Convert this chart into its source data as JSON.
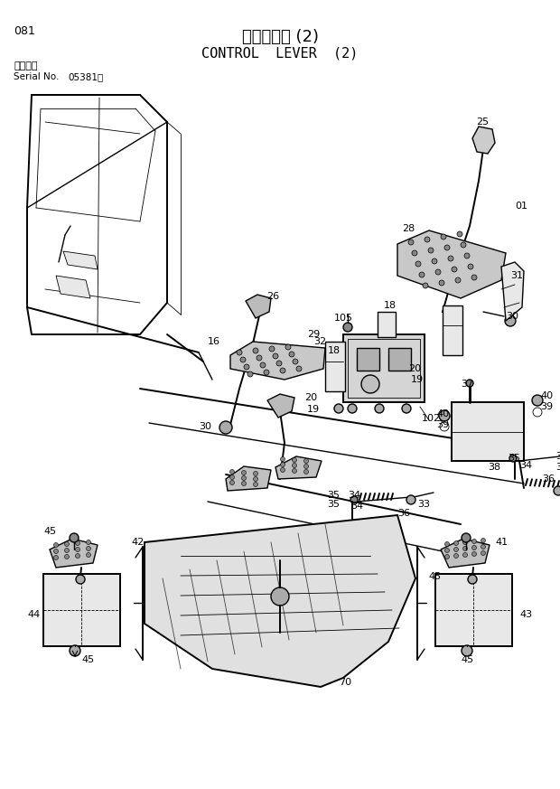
{
  "page_number": "081",
  "title_japanese": "操作レバー (2)",
  "title_english": "CONTROL  LEVER  (2)",
  "serial_label": "適用号機",
  "serial_no_label": "Serial No.",
  "serial_number": "05381～",
  "background_color": "#ffffff",
  "fig_width": 6.2,
  "fig_height": 8.73,
  "dpi": 100
}
